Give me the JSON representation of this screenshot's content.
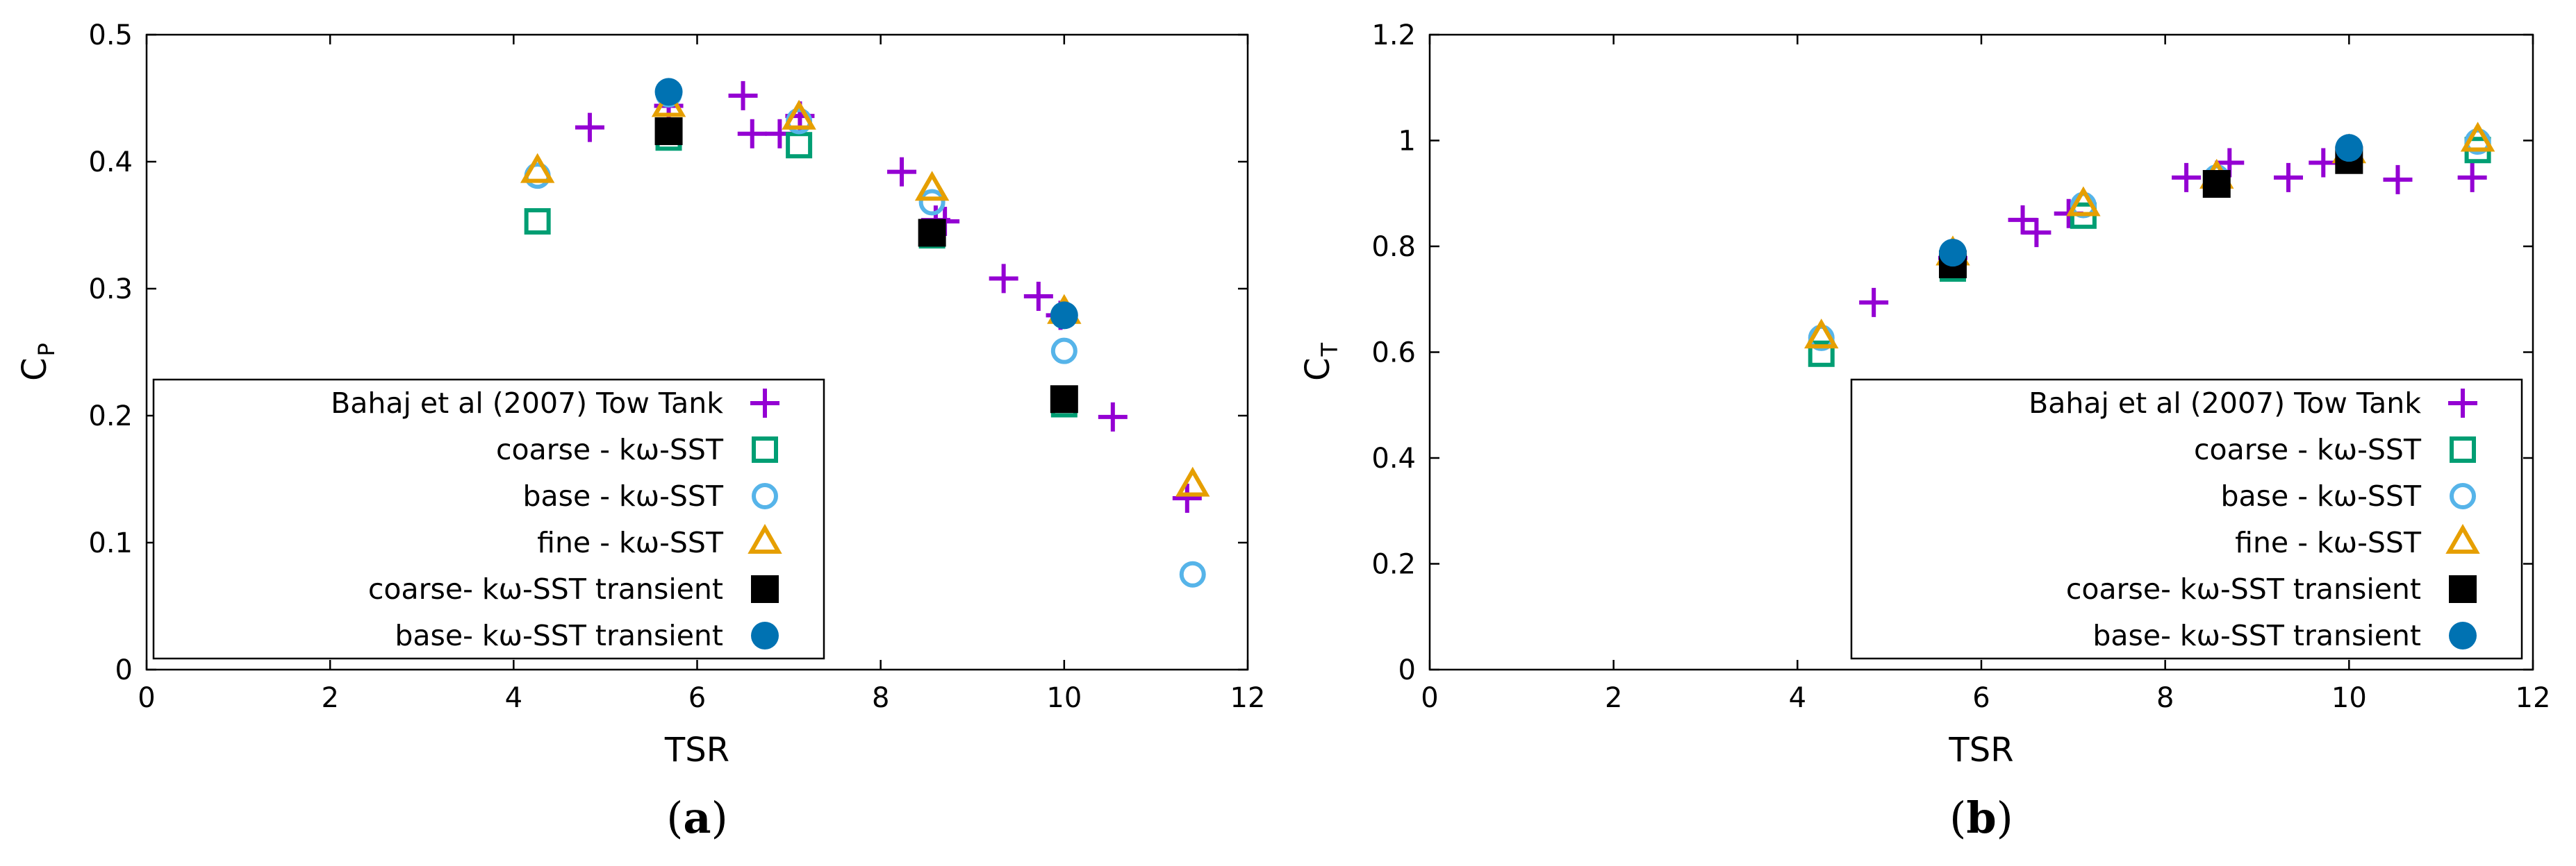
{
  "colors": {
    "tow_tank": "#9400d3",
    "coarse": "#009e73",
    "base": "#56b4e9",
    "fine": "#e69f00",
    "coarse_transient": "#000000",
    "base_transient": "#0072b2"
  },
  "chart_data": [
    {
      "type": "scatter",
      "panel_label": "a",
      "xlabel": "TSR",
      "ylabel_main": "C",
      "ylabel_sub": "P",
      "xlim": [
        0,
        12
      ],
      "ylim": [
        0,
        0.5
      ],
      "xticks": [
        "0",
        "2",
        "4",
        "6",
        "8",
        "10",
        "12"
      ],
      "yticks": [
        "0",
        "0.1",
        "0.2",
        "0.3",
        "0.4",
        "0.5"
      ],
      "grid": false,
      "legend_position": "bottom-left",
      "series": [
        {
          "name": "Bahaj et al (2007) Tow Tank",
          "marker": "plus",
          "color_key": "tow_tank",
          "x": [
            4.83,
            5.69,
            6.5,
            6.6,
            6.9,
            7.12,
            8.23,
            8.6,
            8.7,
            9.34,
            9.72,
            9.96,
            10.53,
            11.34
          ],
          "y": [
            0.427,
            0.444,
            0.452,
            0.422,
            0.422,
            0.436,
            0.392,
            0.354,
            0.353,
            0.308,
            0.294,
            0.279,
            0.199,
            0.135
          ]
        },
        {
          "name": "coarse - kω-SST",
          "marker": "square-open",
          "color_key": "coarse",
          "x": [
            4.26,
            5.69,
            7.11,
            8.56,
            10.0
          ],
          "y": [
            0.353,
            0.419,
            0.413,
            0.342,
            0.209
          ]
        },
        {
          "name": "base - kω-SST",
          "marker": "circle-open",
          "color_key": "base",
          "x": [
            4.26,
            5.69,
            7.11,
            8.56,
            10.0,
            11.4
          ],
          "y": [
            0.389,
            0.453,
            0.432,
            0.368,
            0.251,
            0.075
          ]
        },
        {
          "name": "fine - kω-SST",
          "marker": "triangle-open",
          "color_key": "fine",
          "x": [
            4.26,
            5.69,
            7.11,
            8.56,
            10.0,
            11.4
          ],
          "y": [
            0.392,
            0.444,
            0.434,
            0.378,
            0.281,
            0.145
          ]
        },
        {
          "name": "coarse- kω-SST transient",
          "marker": "square-filled",
          "color_key": "coarse_transient",
          "x": [
            5.69,
            8.56,
            10.0
          ],
          "y": [
            0.424,
            0.344,
            0.213
          ]
        },
        {
          "name": "base- kω-SST transient",
          "marker": "circle-filled",
          "color_key": "base_transient",
          "x": [
            5.69,
            10.0
          ],
          "y": [
            0.455,
            0.279
          ]
        }
      ]
    },
    {
      "type": "scatter",
      "panel_label": "b",
      "xlabel": "TSR",
      "ylabel_main": "C",
      "ylabel_sub": "T",
      "xlim": [
        0,
        12
      ],
      "ylim": [
        0,
        1.2
      ],
      "xticks": [
        "0",
        "2",
        "4",
        "6",
        "8",
        "10",
        "12"
      ],
      "yticks": [
        "0",
        "0.2",
        "0.4",
        "0.6",
        "0.8",
        "1",
        "1.2"
      ],
      "grid": false,
      "legend_position": "bottom-right",
      "series": [
        {
          "name": "Bahaj et al (2007) Tow Tank",
          "marker": "plus",
          "color_key": "tow_tank",
          "x": [
            4.83,
            5.69,
            6.45,
            6.6,
            6.95,
            8.23,
            8.7,
            9.34,
            9.72,
            10.53,
            11.34
          ],
          "y": [
            0.694,
            0.778,
            0.85,
            0.826,
            0.862,
            0.93,
            0.958,
            0.93,
            0.958,
            0.926,
            0.93
          ]
        },
        {
          "name": "coarse - kω-SST",
          "marker": "square-open",
          "color_key": "coarse",
          "x": [
            4.26,
            5.69,
            7.11,
            8.56,
            10.0,
            11.4
          ],
          "y": [
            0.597,
            0.758,
            0.858,
            0.917,
            0.962,
            0.982
          ]
        },
        {
          "name": "base - kω-SST",
          "marker": "circle-open",
          "color_key": "base",
          "x": [
            4.26,
            5.69,
            7.11,
            8.56,
            10.0,
            11.4
          ],
          "y": [
            0.627,
            0.786,
            0.878,
            0.93,
            0.979,
            0.998
          ]
        },
        {
          "name": "fine - kω-SST",
          "marker": "triangle-open",
          "color_key": "fine",
          "x": [
            4.26,
            5.69,
            7.11,
            8.56,
            10.0,
            11.4
          ],
          "y": [
            0.628,
            0.785,
            0.878,
            0.93,
            0.978,
            1.0
          ]
        },
        {
          "name": "coarse- kω-SST transient",
          "marker": "square-filled",
          "color_key": "coarse_transient",
          "x": [
            5.69,
            8.56,
            10.0
          ],
          "y": [
            0.766,
            0.918,
            0.963
          ]
        },
        {
          "name": "base- kω-SST transient",
          "marker": "circle-filled",
          "color_key": "base_transient",
          "x": [
            5.69,
            10.0
          ],
          "y": [
            0.788,
            0.986
          ]
        }
      ]
    }
  ]
}
